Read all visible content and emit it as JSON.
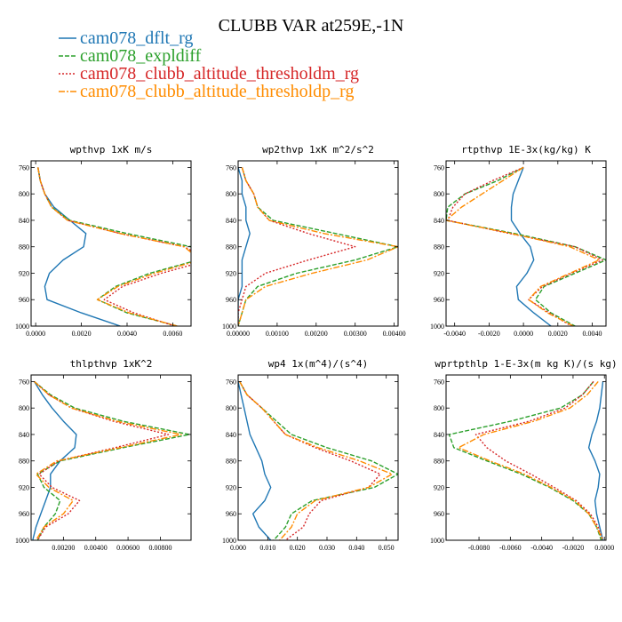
{
  "title": "CLUBB VAR at259E,-1N",
  "colors": {
    "cam078_dflt_rg": "#1f77b4",
    "cam078_expldiff": "#2ca02c",
    "cam078_clubb_altitude_thresholdm_rg": "#d62728",
    "cam078_clubb_altitude_thresholdp_rg": "#ff8c00"
  },
  "legend": [
    {
      "label": "cam078_dflt_rg",
      "color": "#1f77b4",
      "dash": ""
    },
    {
      "label": "cam078_expldiff",
      "color": "#2ca02c",
      "dash": "5,2"
    },
    {
      "label": "cam078_clubb_altitude_thresholdm_rg",
      "color": "#d62728",
      "dash": "2,2"
    },
    {
      "label": "cam078_clubb_altitude_thresholdp_rg",
      "color": "#ff8c00",
      "dash": "7,2,2,2"
    }
  ],
  "chart_data": [
    {
      "type": "line",
      "title": "wpthvp  1xK m/s",
      "xlim": [
        -0.0002,
        0.0068
      ],
      "ylim": [
        1000,
        750
      ],
      "xticks": [
        0.0,
        0.002,
        0.004,
        0.006
      ],
      "xtick_labels": [
        "0.0000",
        "0.0020",
        "0.0040",
        "0.0060"
      ],
      "yticks": [
        760,
        800,
        840,
        880,
        920,
        960,
        1000
      ],
      "y": [
        760,
        780,
        800,
        820,
        840,
        860,
        880,
        900,
        920,
        940,
        960,
        980,
        1000
      ],
      "series": [
        {
          "name": "cam078_dflt_rg",
          "values": [
            0.0001,
            0.0002,
            0.0004,
            0.0008,
            0.0015,
            0.0022,
            0.0021,
            0.0012,
            0.0006,
            0.0004,
            0.0005,
            0.002,
            0.0037
          ]
        },
        {
          "name": "cam078_expldiff",
          "values": [
            0.0001,
            0.0002,
            0.0004,
            0.0007,
            0.0015,
            0.004,
            0.0068,
            0.0071,
            0.005,
            0.0035,
            0.0027,
            0.004,
            0.0062
          ]
        },
        {
          "name": "cam078_clubb_altitude_thresholdm_rg",
          "values": [
            0.0001,
            0.0002,
            0.0004,
            0.0007,
            0.0014,
            0.0037,
            0.0065,
            0.0076,
            0.0055,
            0.0038,
            0.003,
            0.0043,
            0.0061
          ]
        },
        {
          "name": "cam078_clubb_altitude_thresholdp_rg",
          "values": [
            0.0001,
            0.0002,
            0.0004,
            0.0007,
            0.0014,
            0.0037,
            0.0065,
            0.0072,
            0.0052,
            0.0036,
            0.0027,
            0.0041,
            0.0062
          ]
        }
      ]
    },
    {
      "type": "line",
      "title": "wp2thvp  1xK m^2/s^2",
      "xlim": [
        0.0,
        0.0041
      ],
      "ylim": [
        1000,
        750
      ],
      "xticks": [
        0.0,
        0.001,
        0.002,
        0.003,
        0.004
      ],
      "xtick_labels": [
        "0.00000",
        "0.00100",
        "0.00200",
        "0.00300",
        "0.00400"
      ],
      "yticks": [
        760,
        800,
        840,
        880,
        920,
        960,
        1000
      ],
      "y": [
        760,
        780,
        800,
        820,
        840,
        860,
        880,
        900,
        920,
        940,
        960,
        980,
        1000
      ],
      "series": [
        {
          "name": "cam078_dflt_rg",
          "values": [
            0.0,
            0.0001,
            0.0001,
            0.0002,
            0.0002,
            0.0003,
            0.0002,
            0.0001,
            0.0001,
            0.0001,
            0.0,
            0.0,
            0.0
          ]
        },
        {
          "name": "cam078_expldiff",
          "values": [
            0.0001,
            0.0002,
            0.0004,
            0.0005,
            0.0009,
            0.0025,
            0.0041,
            0.003,
            0.0015,
            0.0005,
            0.0002,
            0.0001,
            0.0
          ]
        },
        {
          "name": "cam078_clubb_altitude_thresholdm_rg",
          "values": [
            0.0001,
            0.0002,
            0.0004,
            0.0005,
            0.0008,
            0.0018,
            0.003,
            0.0018,
            0.0007,
            0.0002,
            0.0001,
            0.0,
            0.0
          ]
        },
        {
          "name": "cam078_clubb_altitude_thresholdp_rg",
          "values": [
            0.0001,
            0.0002,
            0.0004,
            0.0005,
            0.0008,
            0.0022,
            0.0041,
            0.0033,
            0.0019,
            0.0007,
            0.0002,
            0.0001,
            0.0
          ]
        }
      ]
    },
    {
      "type": "line",
      "title": "rtpthvp  1E-3x(kg/kg) K",
      "xlim": [
        -0.0045,
        0.0048
      ],
      "ylim": [
        1000,
        750
      ],
      "xticks": [
        -0.004,
        -0.002,
        0.0,
        0.002,
        0.004
      ],
      "xtick_labels": [
        "-0.0040",
        "-0.0020",
        "0.0000",
        "0.0020",
        "0.0040"
      ],
      "yticks": [
        760,
        800,
        840,
        880,
        920,
        960,
        1000
      ],
      "y": [
        760,
        780,
        800,
        820,
        840,
        860,
        880,
        900,
        920,
        940,
        960,
        980,
        1000
      ],
      "series": [
        {
          "name": "cam078_dflt_rg",
          "values": [
            0.0,
            -0.0003,
            -0.0006,
            -0.0007,
            -0.0007,
            -0.0002,
            0.0004,
            0.0006,
            0.0002,
            -0.0004,
            -0.0003,
            0.0006,
            0.0016
          ]
        },
        {
          "name": "cam078_expldiff",
          "values": [
            0.0,
            -0.0015,
            -0.0034,
            -0.0044,
            -0.0045,
            -0.0005,
            0.003,
            0.0048,
            0.003,
            0.0012,
            0.0007,
            0.0016,
            0.003
          ]
        },
        {
          "name": "cam078_clubb_altitude_thresholdm_rg",
          "values": [
            0.0,
            -0.0018,
            -0.0034,
            -0.0041,
            -0.0044,
            -0.0008,
            0.003,
            0.0046,
            0.0028,
            0.0011,
            0.0003,
            0.0015,
            0.0028
          ]
        },
        {
          "name": "cam078_clubb_altitude_thresholdp_rg",
          "values": [
            0.0,
            -0.0012,
            -0.0024,
            -0.0036,
            -0.0045,
            -0.0007,
            0.0027,
            0.0044,
            0.0027,
            0.001,
            0.0003,
            0.0014,
            0.0029
          ]
        }
      ]
    },
    {
      "type": "line",
      "title": "thlpthvp  1xK^2",
      "xlim": [
        0.0,
        0.0099
      ],
      "ylim": [
        1000,
        750
      ],
      "xticks": [
        0.002,
        0.004,
        0.006,
        0.008
      ],
      "xtick_labels": [
        "0.00200",
        "0.00400",
        "0.00600",
        "0.00800"
      ],
      "yticks": [
        760,
        800,
        840,
        880,
        920,
        960,
        1000
      ],
      "y": [
        760,
        780,
        800,
        820,
        840,
        860,
        880,
        900,
        920,
        940,
        960,
        980,
        1000
      ],
      "series": [
        {
          "name": "cam078_dflt_rg",
          "values": [
            0.0002,
            0.0007,
            0.0013,
            0.002,
            0.0028,
            0.0027,
            0.0018,
            0.0012,
            0.0012,
            0.0009,
            0.0006,
            0.0003,
            0.0001
          ]
        },
        {
          "name": "cam078_expldiff",
          "values": [
            0.0002,
            0.0012,
            0.0027,
            0.0057,
            0.0098,
            0.0057,
            0.0018,
            0.0004,
            0.0008,
            0.0018,
            0.0015,
            0.0008,
            0.0004
          ]
        },
        {
          "name": "cam078_clubb_altitude_thresholdm_rg",
          "values": [
            0.0002,
            0.0011,
            0.0025,
            0.0051,
            0.0085,
            0.0052,
            0.0017,
            0.0005,
            0.0013,
            0.003,
            0.0023,
            0.0009,
            0.0004
          ]
        },
        {
          "name": "cam078_clubb_altitude_thresholdp_rg",
          "values": [
            0.0002,
            0.0011,
            0.0025,
            0.0053,
            0.0093,
            0.0055,
            0.0016,
            0.0003,
            0.0011,
            0.0026,
            0.002,
            0.0008,
            0.0003
          ]
        }
      ]
    },
    {
      "type": "line",
      "title": "wp4  1x(m^4)/(s^4)",
      "xlim": [
        0.0,
        0.054
      ],
      "ylim": [
        1000,
        750
      ],
      "xticks": [
        0.0,
        0.01,
        0.02,
        0.03,
        0.04,
        0.05
      ],
      "xtick_labels": [
        "0.000",
        "0.010",
        "0.020",
        "0.030",
        "0.040",
        "0.050"
      ],
      "yticks": [
        760,
        800,
        840,
        880,
        920,
        960,
        1000
      ],
      "y": [
        760,
        780,
        800,
        820,
        840,
        860,
        880,
        900,
        920,
        940,
        960,
        980,
        1000
      ],
      "series": [
        {
          "name": "cam078_dflt_rg",
          "values": [
            0.0,
            0.001,
            0.002,
            0.003,
            0.004,
            0.006,
            0.008,
            0.009,
            0.011,
            0.009,
            0.005,
            0.007,
            0.011
          ]
        },
        {
          "name": "cam078_expldiff",
          "values": [
            0.0005,
            0.003,
            0.008,
            0.013,
            0.018,
            0.03,
            0.045,
            0.054,
            0.046,
            0.025,
            0.018,
            0.016,
            0.012
          ]
        },
        {
          "name": "cam078_clubb_altitude_thresholdm_rg",
          "values": [
            0.0005,
            0.003,
            0.008,
            0.012,
            0.016,
            0.026,
            0.038,
            0.048,
            0.044,
            0.028,
            0.024,
            0.022,
            0.016
          ]
        },
        {
          "name": "cam078_clubb_altitude_thresholdp_rg",
          "values": [
            0.0005,
            0.003,
            0.008,
            0.012,
            0.016,
            0.027,
            0.041,
            0.052,
            0.044,
            0.026,
            0.02,
            0.018,
            0.014
          ]
        }
      ]
    },
    {
      "type": "line",
      "title": "wprtpthlp  1-E-3x(m kg K)/(s kg)",
      "xlim": [
        -0.0101,
        0.0001
      ],
      "ylim": [
        1000,
        750
      ],
      "xticks": [
        -0.008,
        -0.006,
        -0.004,
        -0.002,
        0.0
      ],
      "xtick_labels": [
        "-0.0080",
        "-0.0060",
        "-0.0040",
        "-0.0020",
        "0.0000"
      ],
      "yticks": [
        760,
        800,
        840,
        880,
        920,
        960,
        1000
      ],
      "y": [
        760,
        780,
        800,
        820,
        840,
        860,
        880,
        900,
        920,
        940,
        960,
        980,
        1000
      ],
      "series": [
        {
          "name": "cam078_dflt_rg",
          "values": [
            -0.0001,
            -0.0002,
            -0.0003,
            -0.0005,
            -0.0008,
            -0.001,
            -0.0006,
            -0.0003,
            -0.0004,
            -0.0006,
            -0.0005,
            -0.0003,
            -0.0001
          ]
        },
        {
          "name": "cam078_expldiff",
          "values": [
            -0.0007,
            -0.0014,
            -0.0028,
            -0.006,
            -0.0099,
            -0.0096,
            -0.0075,
            -0.0053,
            -0.0035,
            -0.002,
            -0.001,
            -0.0005,
            -0.0002
          ]
        },
        {
          "name": "cam078_clubb_altitude_thresholdm_rg",
          "values": [
            -0.0007,
            -0.0014,
            -0.0025,
            -0.0048,
            -0.0082,
            -0.0075,
            -0.0063,
            -0.0047,
            -0.0032,
            -0.0018,
            -0.0009,
            -0.0004,
            -0.0001
          ]
        },
        {
          "name": "cam078_clubb_altitude_thresholdp_rg",
          "values": [
            -0.0004,
            -0.0011,
            -0.0022,
            -0.0045,
            -0.0077,
            -0.0093,
            -0.0073,
            -0.0051,
            -0.0034,
            -0.0019,
            -0.001,
            -0.0005,
            -0.0001
          ]
        }
      ]
    }
  ]
}
